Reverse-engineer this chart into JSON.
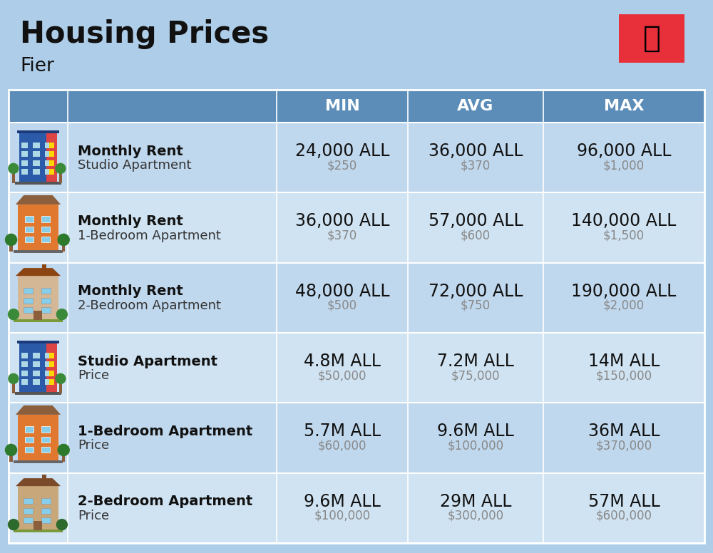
{
  "title": "Housing Prices",
  "subtitle": "Fier",
  "background_color": "#AECDE8",
  "header_bg_color": "#5B8DB8",
  "header_text_color": "#FFFFFF",
  "row_bg_colors": [
    "#C0D8EE",
    "#D0E3F2"
  ],
  "col_headers": [
    "MIN",
    "AVG",
    "MAX"
  ],
  "rows": [
    {
      "icon": "studio_blue",
      "label_bold": "Monthly Rent",
      "label_sub": "Studio Apartment",
      "min_all": "24,000 ALL",
      "min_usd": "$250",
      "avg_all": "36,000 ALL",
      "avg_usd": "$370",
      "max_all": "96,000 ALL",
      "max_usd": "$1,000"
    },
    {
      "icon": "one_bed_orange",
      "label_bold": "Monthly Rent",
      "label_sub": "1-Bedroom Apartment",
      "min_all": "36,000 ALL",
      "min_usd": "$370",
      "avg_all": "57,000 ALL",
      "avg_usd": "$600",
      "max_all": "140,000 ALL",
      "max_usd": "$1,500"
    },
    {
      "icon": "two_bed_beige",
      "label_bold": "Monthly Rent",
      "label_sub": "2-Bedroom Apartment",
      "min_all": "48,000 ALL",
      "min_usd": "$500",
      "avg_all": "72,000 ALL",
      "avg_usd": "$750",
      "max_all": "190,000 ALL",
      "max_usd": "$2,000"
    },
    {
      "icon": "studio_blue2",
      "label_bold": "Studio Apartment",
      "label_sub": "Price",
      "min_all": "4.8M ALL",
      "min_usd": "$50,000",
      "avg_all": "7.2M ALL",
      "avg_usd": "$75,000",
      "max_all": "14M ALL",
      "max_usd": "$150,000"
    },
    {
      "icon": "one_bed_orange2",
      "label_bold": "1-Bedroom Apartment",
      "label_sub": "Price",
      "min_all": "5.7M ALL",
      "min_usd": "$60,000",
      "avg_all": "9.6M ALL",
      "avg_usd": "$100,000",
      "max_all": "36M ALL",
      "max_usd": "$370,000"
    },
    {
      "icon": "two_bed_brown",
      "label_bold": "2-Bedroom Apartment",
      "label_sub": "Price",
      "min_all": "9.6M ALL",
      "min_usd": "$100,000",
      "avg_all": "29M ALL",
      "avg_usd": "$300,000",
      "max_all": "57M ALL",
      "max_usd": "$600,000"
    }
  ],
  "title_fontsize": 30,
  "subtitle_fontsize": 19,
  "header_fontsize": 16,
  "cell_all_fontsize": 17,
  "cell_usd_fontsize": 12,
  "label_bold_fontsize": 14,
  "label_sub_fontsize": 13
}
